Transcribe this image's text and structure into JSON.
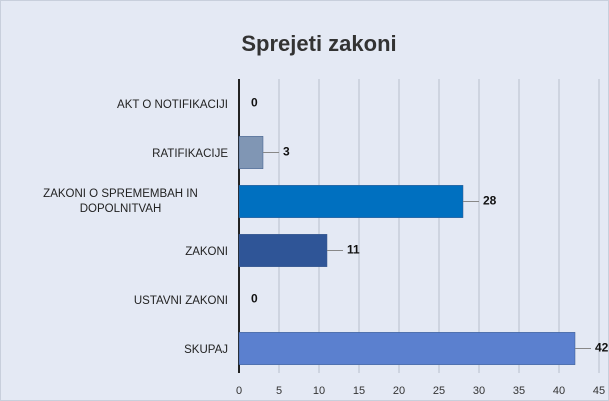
{
  "chart_data": {
    "type": "bar",
    "orientation": "horizontal",
    "title": "Sprejeti zakoni",
    "categories": [
      "AKT O NOTIFIKACIJI",
      "RATIFIKACIJE",
      "ZAKONI O SPREMEMBAH IN DOPOLNITVAH",
      "ZAKONI",
      "USTAVNI ZAKONI",
      "SKUPAJ"
    ],
    "values": [
      0,
      3,
      28,
      11,
      0,
      42
    ],
    "colors": [
      "#8096b4",
      "#8096b4",
      "#0070c0",
      "#2f5597",
      "#4472c4",
      "#5b80cf"
    ],
    "xlim": [
      0,
      45
    ],
    "xticks": [
      0,
      5,
      10,
      15,
      20,
      25,
      30,
      35,
      40,
      45
    ],
    "grid": true
  }
}
